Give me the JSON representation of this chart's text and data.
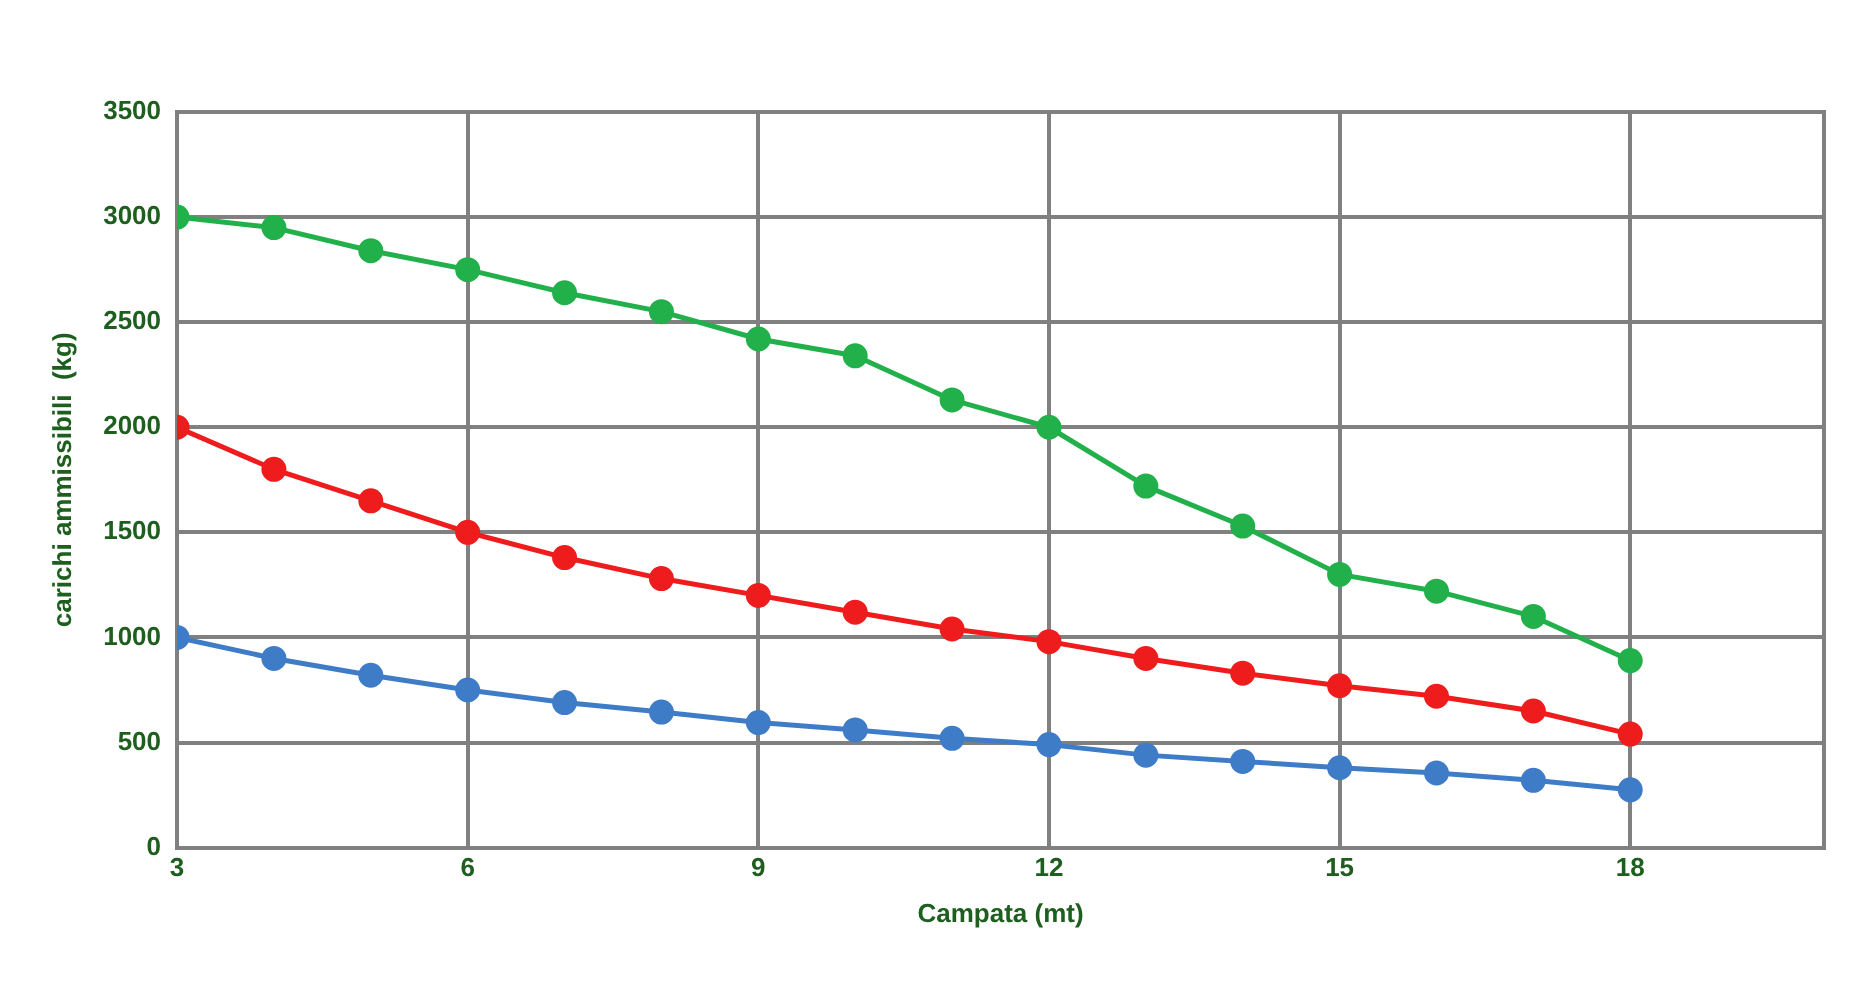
{
  "chart_data": {
    "type": "line",
    "xlabel": "Campata (mt)",
    "ylabel": "carichi ammissibili  (kg)",
    "x": [
      3,
      4,
      5,
      6,
      7,
      8,
      9,
      10,
      11,
      12,
      13,
      14,
      15,
      16,
      17,
      18
    ],
    "series": [
      {
        "color": "#22b04b",
        "values": [
          3000,
          2950,
          2840,
          2750,
          2640,
          2550,
          2420,
          2340,
          2130,
          2000,
          1720,
          1530,
          1300,
          1220,
          1100,
          890
        ]
      },
      {
        "color": "#ee1c1c",
        "values": [
          2000,
          1800,
          1650,
          1500,
          1380,
          1280,
          1200,
          1120,
          1040,
          980,
          900,
          830,
          770,
          720,
          650,
          540
        ]
      },
      {
        "color": "#3f7cc8",
        "values": [
          1000,
          900,
          820,
          750,
          690,
          645,
          595,
          560,
          520,
          490,
          440,
          410,
          380,
          355,
          320,
          275
        ]
      }
    ],
    "xlim": [
      3,
      20
    ],
    "xticks": [
      3,
      6,
      9,
      12,
      15,
      18
    ],
    "ylim": [
      0,
      3500
    ],
    "yticks": [
      0,
      500,
      1000,
      1500,
      2000,
      2500,
      3000,
      3500
    ],
    "grid": true,
    "legend": false,
    "marker": "circle",
    "line_style": "solid"
  }
}
